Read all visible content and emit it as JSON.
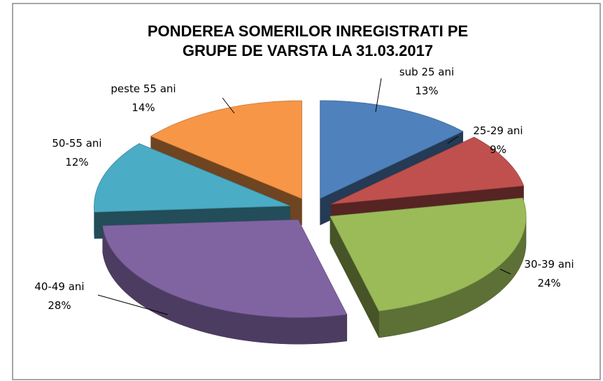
{
  "chart_data": {
    "type": "pie",
    "title": [
      "PONDEREA SOMERILOR INREGISTRATI PE",
      "GRUPE DE VARSTA LA 31.03.2017"
    ],
    "categories": [
      "sub 25 ani",
      "25-29 ani",
      "30-39 ani",
      "40-49 ani",
      "50-55 ani",
      "peste 55 ani"
    ],
    "values": [
      13,
      9,
      24,
      28,
      12,
      14
    ],
    "value_labels": [
      "13%",
      "9%",
      "24%",
      "28%",
      "12%",
      "14%"
    ],
    "colors": [
      "#4f81bd",
      "#c0504d",
      "#9bbb59",
      "#8064a2",
      "#4bacc6",
      "#f79646"
    ]
  }
}
